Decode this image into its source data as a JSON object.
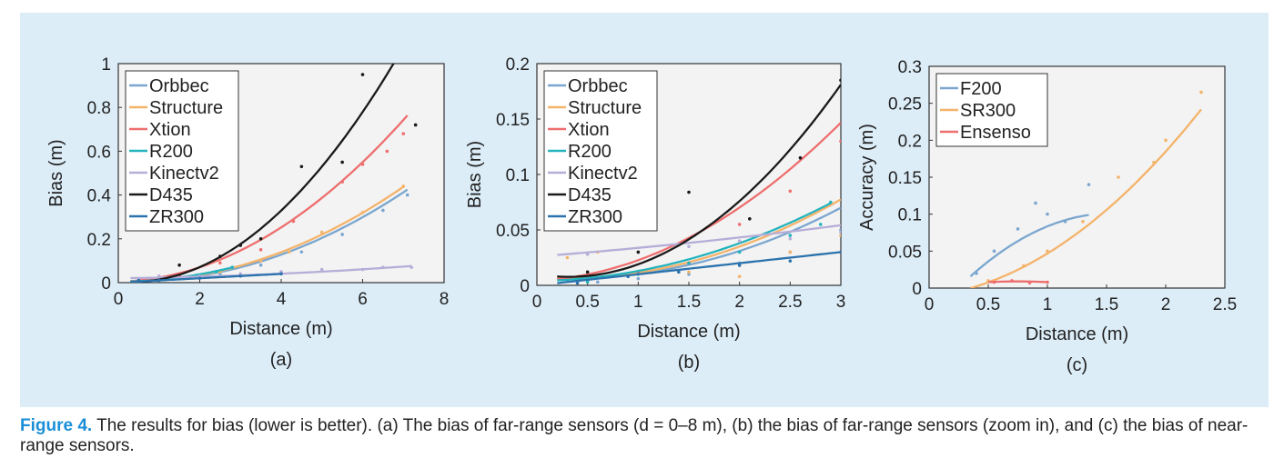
{
  "caption": {
    "label": "Figure 4.",
    "text": " The results for bias (lower is better). (a) The bias of far-range sensors (d = 0–8 m), (b) the bias of far-range sensors (zoom in), and (c) the bias of near-range sensors."
  },
  "colors": {
    "Orbbec": "#7aa6cf",
    "Structure": "#f4b36a",
    "Xtion": "#ee6e6e",
    "R200": "#22b3bd",
    "Kinectv2": "#b7aed8",
    "D435": "#1a1a1a",
    "ZR300": "#2c73ad",
    "F200": "#7aa6cf",
    "SR300": "#f4b36a",
    "Ensenso": "#ee6e6e"
  },
  "chart_data": [
    {
      "type": "scatter",
      "panel_label": "(a)",
      "xlabel": "Distance (m)",
      "ylabel": "Bias (m)",
      "xlim": [
        0,
        8
      ],
      "ylim": [
        0,
        1
      ],
      "xticks": [
        0,
        2,
        4,
        6,
        8
      ],
      "yticks": [
        0,
        0.2,
        0.4,
        0.6,
        0.8,
        1
      ],
      "ytick_labels": [
        "0",
        "0.2",
        "0.4",
        "0.6",
        "0.8",
        "1"
      ],
      "legend_position": "top-left",
      "series": [
        {
          "name": "Orbbec",
          "fit_x": [
            0.3,
            7.1
          ],
          "fit": [
            0.0093,
            -0.0075,
            0.0088
          ],
          "points": [
            [
              0.5,
              0.01
            ],
            [
              1.5,
              0.02
            ],
            [
              2.5,
              0.04
            ],
            [
              3.5,
              0.08
            ],
            [
              4.5,
              0.14
            ],
            [
              5.5,
              0.22
            ],
            [
              6.5,
              0.33
            ],
            [
              7.1,
              0.4
            ]
          ]
        },
        {
          "name": "Structure",
          "fit_x": [
            0.3,
            7.0
          ],
          "fit": [
            0.0095,
            -0.005,
            0.007
          ],
          "points": [
            [
              0.5,
              0.01
            ],
            [
              1.5,
              0.03
            ],
            [
              2.5,
              0.05
            ],
            [
              3.5,
              0.1
            ],
            [
              4.2,
              0.14
            ],
            [
              5.0,
              0.23
            ],
            [
              6.0,
              0.32
            ],
            [
              7.0,
              0.44
            ]
          ]
        },
        {
          "name": "Xtion",
          "fit_x": [
            0.3,
            7.1
          ],
          "fit": [
            0.0145,
            0.004,
            0.0042
          ],
          "points": [
            [
              0.5,
              0.01
            ],
            [
              1.5,
              0.03
            ],
            [
              2.5,
              0.09
            ],
            [
              3.5,
              0.15
            ],
            [
              4.3,
              0.28
            ],
            [
              5.5,
              0.46
            ],
            [
              6.0,
              0.54
            ],
            [
              6.6,
              0.6
            ],
            [
              7.0,
              0.68
            ]
          ]
        },
        {
          "name": "R200",
          "fit_x": [
            0.3,
            2.8
          ],
          "fit": [
            0.008,
            0.001,
            0.004
          ],
          "points": [
            [
              0.5,
              0.0
            ],
            [
              1.2,
              0.02
            ],
            [
              2.0,
              0.03
            ],
            [
              2.4,
              0.05
            ],
            [
              2.8,
              0.07
            ]
          ]
        },
        {
          "name": "Kinectv2",
          "fit_x": [
            0.3,
            7.2
          ],
          "fit": [
            0.0008,
            0.002,
            0.02
          ],
          "points": [
            [
              1.0,
              0.03
            ],
            [
              2.0,
              0.03
            ],
            [
              3.0,
              0.04
            ],
            [
              4.0,
              0.05
            ],
            [
              5.0,
              0.06
            ],
            [
              6.0,
              0.06
            ],
            [
              6.5,
              0.07
            ],
            [
              7.2,
              0.07
            ]
          ]
        },
        {
          "name": "D435",
          "fit_x": [
            0.3,
            6.9
          ],
          "fit": [
            0.024,
            -0.015,
            0.005
          ],
          "points": [
            [
              1.5,
              0.08
            ],
            [
              2.5,
              0.12
            ],
            [
              3.0,
              0.17
            ],
            [
              3.5,
              0.2
            ],
            [
              4.5,
              0.53
            ],
            [
              5.5,
              0.55
            ],
            [
              6.0,
              0.95
            ],
            [
              7.3,
              0.72
            ]
          ]
        },
        {
          "name": "ZR300",
          "fit_x": [
            0.3,
            4.0
          ],
          "fit": [
            0.0,
            0.01,
            0.0
          ],
          "points": [
            [
              0.5,
              0.01
            ],
            [
              1.0,
              0.01
            ],
            [
              2.0,
              0.02
            ],
            [
              3.0,
              0.03
            ],
            [
              4.0,
              0.04
            ]
          ]
        }
      ]
    },
    {
      "type": "scatter",
      "panel_label": "(b)",
      "xlabel": "Distance (m)",
      "ylabel": "Bias (m)",
      "xlim": [
        0,
        3
      ],
      "ylim": [
        0,
        0.2
      ],
      "xticks": [
        0,
        0.5,
        1,
        1.5,
        2,
        2.5,
        3
      ],
      "yticks": [
        0,
        0.05,
        0.1,
        0.15,
        0.2
      ],
      "ytick_labels": [
        "0",
        "0.05",
        "0.1",
        "0.15",
        "0.2"
      ],
      "legend_position": "top-left",
      "series": [
        {
          "name": "Orbbec",
          "fit_x": [
            0.2,
            3.0
          ],
          "fit": [
            0.0093,
            -0.0075,
            0.0088
          ],
          "points": [
            [
              0.3,
              0.005
            ],
            [
              0.6,
              0.003
            ],
            [
              1.0,
              0.006
            ],
            [
              1.5,
              0.01
            ],
            [
              2.0,
              0.02
            ],
            [
              2.5,
              0.03
            ],
            [
              3.0,
              0.05
            ]
          ]
        },
        {
          "name": "Structure",
          "fit_x": [
            0.2,
            3.0
          ],
          "fit": [
            0.0095,
            -0.005,
            0.007
          ],
          "points": [
            [
              0.3,
              0.025
            ],
            [
              0.6,
              0.03
            ],
            [
              1.0,
              0.01
            ],
            [
              1.5,
              0.012
            ],
            [
              2.0,
              0.008
            ],
            [
              2.5,
              0.03
            ],
            [
              3.0,
              0.045
            ]
          ]
        },
        {
          "name": "Xtion",
          "fit_x": [
            0.2,
            3.0
          ],
          "fit": [
            0.0145,
            0.004,
            0.0042
          ],
          "points": [
            [
              0.5,
              0.005
            ],
            [
              1.0,
              0.012
            ],
            [
              1.5,
              0.02
            ],
            [
              2.0,
              0.055
            ],
            [
              2.5,
              0.085
            ],
            [
              3.0,
              0.13
            ]
          ]
        },
        {
          "name": "R200",
          "fit_x": [
            0.2,
            2.9
          ],
          "fit": [
            0.008,
            0.001,
            0.004
          ],
          "points": [
            [
              0.5,
              0.003
            ],
            [
              1.0,
              0.01
            ],
            [
              1.5,
              0.02
            ],
            [
              2.0,
              0.03
            ],
            [
              2.5,
              0.045
            ],
            [
              2.8,
              0.055
            ],
            [
              2.9,
              0.075
            ]
          ]
        },
        {
          "name": "Kinectv2",
          "fit_x": [
            0.2,
            3.0
          ],
          "fit": [
            0.0008,
            0.007,
            0.026
          ],
          "points": [
            [
              0.5,
              0.028
            ],
            [
              1.0,
              0.03
            ],
            [
              1.5,
              0.035
            ],
            [
              2.0,
              0.04
            ],
            [
              2.5,
              0.042
            ],
            [
              3.0,
              0.048
            ]
          ]
        },
        {
          "name": "D435",
          "fit_x": [
            0.2,
            3.0
          ],
          "fit": [
            0.024,
            -0.015,
            0.01
          ],
          "points": [
            [
              0.5,
              0.012
            ],
            [
              1.0,
              0.03
            ],
            [
              1.5,
              0.084
            ],
            [
              2.1,
              0.06
            ],
            [
              2.6,
              0.115
            ],
            [
              3.0,
              0.185
            ]
          ]
        },
        {
          "name": "ZR300",
          "fit_x": [
            0.2,
            3.0
          ],
          "fit": [
            0.0,
            0.01,
            0.0
          ],
          "points": [
            [
              0.4,
              0.002
            ],
            [
              0.9,
              0.008
            ],
            [
              1.4,
              0.012
            ],
            [
              2.0,
              0.018
            ],
            [
              2.5,
              0.022
            ],
            [
              3.0,
              0.03
            ]
          ]
        }
      ]
    },
    {
      "type": "scatter",
      "panel_label": "(c)",
      "xlabel": "Distance (m)",
      "ylabel": "Accuracy (m)",
      "xlim": [
        0,
        2.5
      ],
      "ylim": [
        0,
        0.3
      ],
      "xticks": [
        0,
        0.5,
        1,
        1.5,
        2,
        2.5
      ],
      "yticks": [
        0,
        0.05,
        0.1,
        0.15,
        0.2,
        0.25,
        0.3
      ],
      "ytick_labels": [
        "0",
        "0.05",
        "0.1",
        "0.15",
        "0.2",
        "0.25",
        "0.3"
      ],
      "legend_position": "top-left",
      "series": [
        {
          "name": "F200",
          "fit_x": [
            0.35,
            1.35
          ],
          "fit": [
            -0.06,
            0.185,
            -0.0415
          ],
          "points": [
            [
              0.4,
              0.02
            ],
            [
              0.55,
              0.05
            ],
            [
              0.75,
              0.08
            ],
            [
              0.9,
              0.115
            ],
            [
              1.0,
              0.1
            ],
            [
              1.15,
              0.09
            ],
            [
              1.35,
              0.14
            ]
          ]
        },
        {
          "name": "SR300",
          "fit_x": [
            0.35,
            2.3
          ],
          "fit": [
            0.0399,
            0.0183,
            -0.0114
          ],
          "points": [
            [
              0.5,
              0.01
            ],
            [
              0.8,
              0.03
            ],
            [
              1.0,
              0.05
            ],
            [
              1.3,
              0.09
            ],
            [
              1.6,
              0.15
            ],
            [
              1.9,
              0.17
            ],
            [
              2.0,
              0.2
            ],
            [
              2.3,
              0.265
            ]
          ]
        },
        {
          "name": "Ensenso",
          "fit_x": [
            0.5,
            1.0
          ],
          "fit": [
            -0.016,
            0.024,
            0.0
          ],
          "points": [
            [
              0.55,
              0.008
            ],
            [
              0.7,
              0.01
            ],
            [
              0.85,
              0.007
            ],
            [
              1.0,
              0.008
            ]
          ]
        }
      ]
    }
  ]
}
